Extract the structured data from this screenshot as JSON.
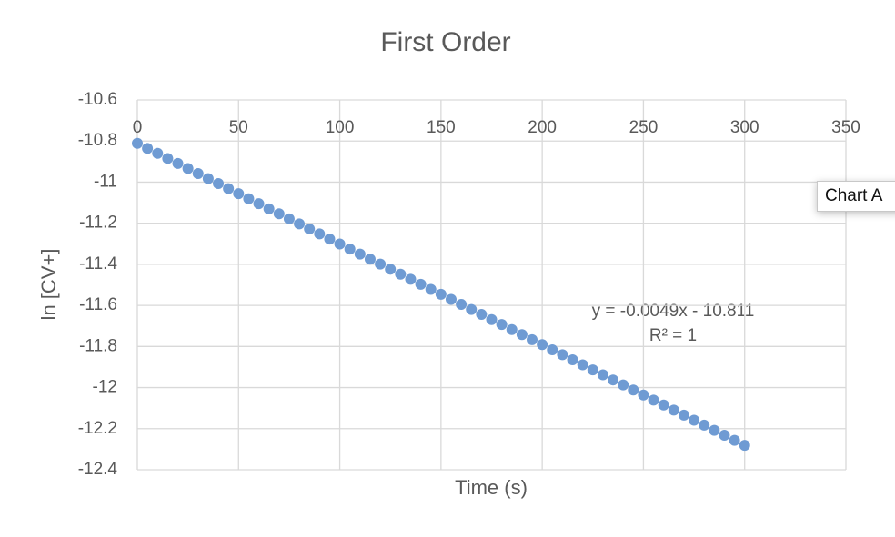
{
  "chart_data": {
    "type": "scatter",
    "title": "First Order",
    "x_label": "Time (s)",
    "y_label": "ln [CV+]",
    "x": [
      0,
      5,
      10,
      15,
      20,
      25,
      30,
      35,
      40,
      45,
      50,
      55,
      60,
      65,
      70,
      75,
      80,
      85,
      90,
      95,
      100,
      105,
      110,
      115,
      120,
      125,
      130,
      135,
      140,
      145,
      150,
      155,
      160,
      165,
      170,
      175,
      180,
      185,
      190,
      195,
      200,
      205,
      210,
      215,
      220,
      225,
      230,
      235,
      240,
      245,
      250,
      255,
      260,
      265,
      270,
      275,
      280,
      285,
      290,
      295,
      300
    ],
    "series": [
      {
        "name": "ln [CV+]",
        "color": "#6f9bd3",
        "values": [
          -10.811,
          -10.836,
          -10.86,
          -10.885,
          -10.909,
          -10.934,
          -10.958,
          -10.983,
          -11.007,
          -11.032,
          -11.056,
          -11.081,
          -11.105,
          -11.13,
          -11.154,
          -11.179,
          -11.203,
          -11.228,
          -11.252,
          -11.277,
          -11.301,
          -11.326,
          -11.35,
          -11.375,
          -11.399,
          -11.424,
          -11.448,
          -11.473,
          -11.497,
          -11.522,
          -11.546,
          -11.571,
          -11.595,
          -11.62,
          -11.644,
          -11.669,
          -11.693,
          -11.718,
          -11.742,
          -11.767,
          -11.791,
          -11.816,
          -11.84,
          -11.865,
          -11.889,
          -11.914,
          -11.938,
          -11.963,
          -11.987,
          -12.012,
          -12.036,
          -12.061,
          -12.085,
          -12.11,
          -12.134,
          -12.159,
          -12.183,
          -12.208,
          -12.232,
          -12.257,
          -12.281
        ]
      }
    ],
    "xlim": [
      0,
      350
    ],
    "xticks": [
      0,
      50,
      100,
      150,
      200,
      250,
      300,
      350
    ],
    "ylim": [
      -12.4,
      -10.6
    ],
    "yticks": [
      -10.6,
      -10.8,
      -11,
      -11.2,
      -11.4,
      -11.6,
      -11.8,
      -12,
      -12.2,
      -12.4
    ],
    "grid": true,
    "trendline_label": [
      "y = -0.0049x - 10.811",
      "R² = 1"
    ]
  },
  "tooltip": "Chart A"
}
